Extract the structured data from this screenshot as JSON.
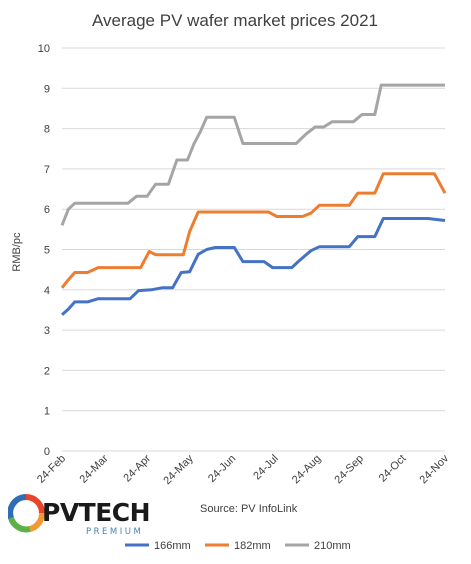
{
  "chart_data": {
    "type": "line",
    "title": "Average PV wafer market prices 2021",
    "xlabel": "",
    "ylabel": "RMB/pc",
    "ylim": [
      0,
      10
    ],
    "yticks": [
      "0",
      "1",
      "2",
      "3",
      "4",
      "5",
      "6",
      "7",
      "8",
      "9",
      "10"
    ],
    "xticks": [
      "24-Feb",
      "24-Mar",
      "24-Apr",
      "24-May",
      "24-Jun",
      "24-Jul",
      "24-Aug",
      "24-Sep",
      "24-Oct",
      "24-Nov"
    ],
    "grid": true,
    "legend_position": "bottom",
    "source": "Source: PV InfoLink",
    "series": [
      {
        "name": "166mm",
        "color": "#4472c4",
        "points": [
          [
            0,
            3.38
          ],
          [
            0.15,
            3.52
          ],
          [
            0.3,
            3.7
          ],
          [
            0.6,
            3.7
          ],
          [
            0.85,
            3.78
          ],
          [
            1.6,
            3.78
          ],
          [
            1.8,
            3.98
          ],
          [
            2.1,
            4.0
          ],
          [
            2.35,
            4.05
          ],
          [
            2.6,
            4.05
          ],
          [
            2.8,
            4.43
          ],
          [
            3.0,
            4.45
          ],
          [
            3.2,
            4.88
          ],
          [
            3.4,
            5.0
          ],
          [
            3.6,
            5.05
          ],
          [
            4.05,
            5.05
          ],
          [
            4.25,
            4.7
          ],
          [
            4.75,
            4.7
          ],
          [
            4.95,
            4.55
          ],
          [
            5.4,
            4.55
          ],
          [
            5.55,
            4.7
          ],
          [
            5.85,
            4.97
          ],
          [
            6.05,
            5.07
          ],
          [
            6.75,
            5.07
          ],
          [
            6.95,
            5.32
          ],
          [
            7.35,
            5.32
          ],
          [
            7.55,
            5.77
          ],
          [
            8.6,
            5.77
          ],
          [
            9.0,
            5.72
          ]
        ]
      },
      {
        "name": "182mm",
        "color": "#ed7d31",
        "points": [
          [
            0,
            4.05
          ],
          [
            0.15,
            4.25
          ],
          [
            0.3,
            4.43
          ],
          [
            0.6,
            4.43
          ],
          [
            0.85,
            4.55
          ],
          [
            1.85,
            4.55
          ],
          [
            2.05,
            4.95
          ],
          [
            2.2,
            4.87
          ],
          [
            2.85,
            4.87
          ],
          [
            3.0,
            5.45
          ],
          [
            3.2,
            5.93
          ],
          [
            4.85,
            5.93
          ],
          [
            5.05,
            5.82
          ],
          [
            5.65,
            5.82
          ],
          [
            5.85,
            5.9
          ],
          [
            6.05,
            6.1
          ],
          [
            6.75,
            6.1
          ],
          [
            6.95,
            6.4
          ],
          [
            7.35,
            6.4
          ],
          [
            7.55,
            6.88
          ],
          [
            8.75,
            6.88
          ],
          [
            9.0,
            6.4
          ]
        ]
      },
      {
        "name": "210mm",
        "color": "#a5a5a5",
        "points": [
          [
            0,
            5.6
          ],
          [
            0.15,
            6.0
          ],
          [
            0.3,
            6.15
          ],
          [
            1.55,
            6.15
          ],
          [
            1.75,
            6.32
          ],
          [
            2.0,
            6.32
          ],
          [
            2.2,
            6.62
          ],
          [
            2.5,
            6.62
          ],
          [
            2.7,
            7.22
          ],
          [
            2.95,
            7.22
          ],
          [
            3.1,
            7.62
          ],
          [
            3.25,
            7.92
          ],
          [
            3.4,
            8.28
          ],
          [
            4.05,
            8.28
          ],
          [
            4.25,
            7.63
          ],
          [
            5.5,
            7.63
          ],
          [
            5.75,
            7.88
          ],
          [
            5.95,
            8.04
          ],
          [
            6.15,
            8.04
          ],
          [
            6.35,
            8.17
          ],
          [
            6.85,
            8.17
          ],
          [
            7.05,
            8.35
          ],
          [
            7.35,
            8.35
          ],
          [
            7.5,
            9.08
          ],
          [
            9.0,
            9.08
          ]
        ]
      }
    ]
  },
  "logo": {
    "word": "PVTECH",
    "sub": "PREMIUM"
  }
}
